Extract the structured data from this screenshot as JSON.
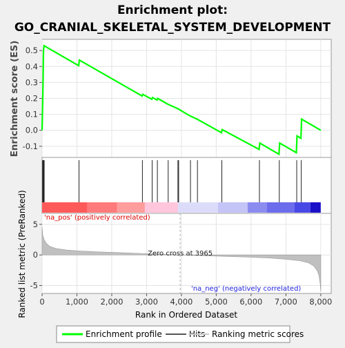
{
  "chart_data": {
    "type": "line",
    "title_line1": "Enrichment plot:",
    "title_line2": "GO_CRANIAL_SKELETAL_SYSTEM_DEVELOPMENT",
    "es_panel": {
      "ylabel": "Enrichment score (ES)",
      "ylim": [
        -0.17,
        0.57
      ],
      "yticks": [
        -0.1,
        0.0,
        0.1,
        0.2,
        0.3,
        0.4,
        0.5
      ],
      "ytick_labels": [
        "-0.1",
        "0.0",
        "0.1",
        "0.2",
        "0.3",
        "0.4",
        "0.5"
      ],
      "series": [
        {
          "name": "Enrichment profile",
          "color": "#00ff00",
          "points": [
            [
              0,
              0.0
            ],
            [
              25,
              0.27
            ],
            [
              40,
              0.5
            ],
            [
              55,
              0.53
            ],
            [
              1050,
              0.405
            ],
            [
              1070,
              0.44
            ],
            [
              2870,
              0.215
            ],
            [
              2890,
              0.225
            ],
            [
              3150,
              0.195
            ],
            [
              3170,
              0.205
            ],
            [
              3300,
              0.19
            ],
            [
              3320,
              0.2
            ],
            [
              3600,
              0.165
            ],
            [
              3900,
              0.135
            ],
            [
              4250,
              0.09
            ],
            [
              4450,
              0.07
            ],
            [
              5150,
              -0.015
            ],
            [
              5170,
              0.005
            ],
            [
              6230,
              -0.12
            ],
            [
              6250,
              -0.08
            ],
            [
              6800,
              -0.15
            ],
            [
              6820,
              -0.08
            ],
            [
              7300,
              -0.14
            ],
            [
              7320,
              -0.035
            ],
            [
              7430,
              -0.05
            ],
            [
              7450,
              0.07
            ],
            [
              8000,
              0.0
            ]
          ]
        }
      ]
    },
    "hits": {
      "name": "Hits",
      "positions": [
        15,
        30,
        45,
        60,
        1060,
        2880,
        3160,
        3310,
        3620,
        3900,
        3920,
        4260,
        4460,
        5160,
        6240,
        6810,
        7310,
        7440
      ]
    },
    "ranked_panel": {
      "ylabel": "Ranked list metric (PreRanked)",
      "ylim": [
        -6.3,
        6.8
      ],
      "yticks": [
        -5,
        0,
        5
      ],
      "ytick_labels": [
        "-5",
        "0",
        "5"
      ],
      "metric_points": [
        [
          0,
          4.6
        ],
        [
          20,
          3.2
        ],
        [
          60,
          2.5
        ],
        [
          120,
          1.9
        ],
        [
          220,
          1.4
        ],
        [
          400,
          1.05
        ],
        [
          700,
          0.8
        ],
        [
          1100,
          0.65
        ],
        [
          1600,
          0.5
        ],
        [
          2200,
          0.38
        ],
        [
          2800,
          0.25
        ],
        [
          3400,
          0.13
        ],
        [
          3965,
          0.0
        ],
        [
          4500,
          -0.1
        ],
        [
          5200,
          -0.22
        ],
        [
          5900,
          -0.35
        ],
        [
          6500,
          -0.5
        ],
        [
          7000,
          -0.7
        ],
        [
          7400,
          -0.95
        ],
        [
          7650,
          -1.3
        ],
        [
          7800,
          -1.8
        ],
        [
          7900,
          -2.6
        ],
        [
          7950,
          -3.4
        ],
        [
          7985,
          -4.8
        ],
        [
          8000,
          -6.0
        ]
      ],
      "pos_label": "'na_pos' (positively correlated)",
      "neg_label": "'na_neg' (negatively correlated)",
      "zero_cross_label": "Zero cross at 3965",
      "zero_cross": 3965
    },
    "xlabel": "Rank in Ordered Dataset",
    "xlim": [
      0,
      8300
    ],
    "xticks": [
      0,
      1000,
      2000,
      3000,
      4000,
      5000,
      6000,
      7000,
      8000
    ],
    "xtick_labels": [
      "0",
      "1,000",
      "2,000",
      "3,000",
      "4,000",
      "5,000",
      "6,000",
      "7,000",
      "8,000"
    ],
    "heat_bar": {
      "segments": [
        {
          "from": 0,
          "to": 1300,
          "color": "#ff5a5a"
        },
        {
          "from": 1300,
          "to": 2150,
          "color": "#ff7a7a"
        },
        {
          "from": 2150,
          "to": 2950,
          "color": "#ff9d9d"
        },
        {
          "from": 2950,
          "to": 3900,
          "color": "#ffc6dc"
        },
        {
          "from": 3900,
          "to": 5050,
          "color": "#dcdcfa"
        },
        {
          "from": 5050,
          "to": 5900,
          "color": "#c4c4f6"
        },
        {
          "from": 5900,
          "to": 6450,
          "color": "#8c8cf0"
        },
        {
          "from": 6450,
          "to": 7250,
          "color": "#6c6cec"
        },
        {
          "from": 7250,
          "to": 7700,
          "color": "#4848e6"
        },
        {
          "from": 7700,
          "to": 8000,
          "color": "#1a10c8"
        }
      ]
    },
    "legend": [
      {
        "label": "Enrichment profile",
        "color": "#00ff00"
      },
      {
        "label": "Hits",
        "color": "#555555"
      },
      {
        "label": "Ranking metric scores",
        "color": "#c8c8c8"
      }
    ]
  }
}
